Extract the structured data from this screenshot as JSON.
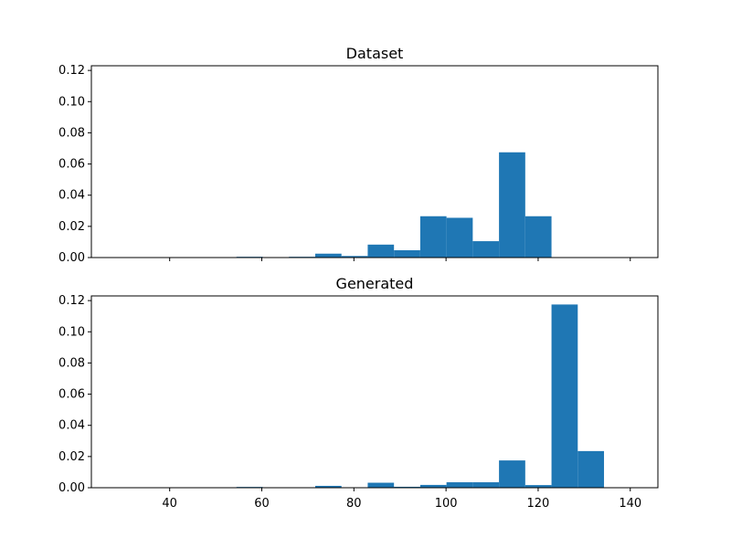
{
  "colors": {
    "bar": "#1f77b4",
    "axis": "#000000",
    "background": "#ffffff"
  },
  "chart_data": [
    {
      "type": "bar",
      "title": "Dataset",
      "xlabel": "",
      "ylabel": "",
      "xlim": [
        23,
        146
      ],
      "ylim": [
        0,
        0.123
      ],
      "grid": false,
      "x_ticks": [
        40,
        60,
        80,
        100,
        120,
        140
      ],
      "x_tick_labels": [],
      "y_ticks": [
        0.0,
        0.02,
        0.04,
        0.06,
        0.08,
        0.1,
        0.12
      ],
      "y_tick_labels": [
        "0.00",
        "0.02",
        "0.04",
        "0.06",
        "0.08",
        "0.10",
        "0.12"
      ],
      "bin_width": 5.7,
      "bins": [
        {
          "x0": 54.5,
          "value": 0.0005
        },
        {
          "x0": 65.9,
          "value": 0.0005
        },
        {
          "x0": 71.6,
          "value": 0.0025
        },
        {
          "x0": 77.3,
          "value": 0.001
        },
        {
          "x0": 83.0,
          "value": 0.0083
        },
        {
          "x0": 88.7,
          "value": 0.0047
        },
        {
          "x0": 94.4,
          "value": 0.0265
        },
        {
          "x0": 100.1,
          "value": 0.0255
        },
        {
          "x0": 105.8,
          "value": 0.0105
        },
        {
          "x0": 111.5,
          "value": 0.0675
        },
        {
          "x0": 117.2,
          "value": 0.0265
        }
      ]
    },
    {
      "type": "bar",
      "title": "Generated",
      "xlabel": "",
      "ylabel": "",
      "xlim": [
        23,
        146
      ],
      "ylim": [
        0,
        0.123
      ],
      "grid": false,
      "x_ticks": [
        40,
        60,
        80,
        100,
        120,
        140
      ],
      "x_tick_labels": [
        "40",
        "60",
        "80",
        "100",
        "120",
        "140"
      ],
      "y_ticks": [
        0.0,
        0.02,
        0.04,
        0.06,
        0.08,
        0.1,
        0.12
      ],
      "y_tick_labels": [
        "0.00",
        "0.02",
        "0.04",
        "0.06",
        "0.08",
        "0.10",
        "0.12"
      ],
      "bin_width": 5.7,
      "bins": [
        {
          "x0": 54.5,
          "value": 0.0005
        },
        {
          "x0": 71.6,
          "value": 0.0012
        },
        {
          "x0": 83.0,
          "value": 0.0032
        },
        {
          "x0": 88.7,
          "value": 0.0006
        },
        {
          "x0": 94.4,
          "value": 0.0018
        },
        {
          "x0": 100.1,
          "value": 0.0035
        },
        {
          "x0": 105.8,
          "value": 0.0035
        },
        {
          "x0": 111.5,
          "value": 0.0175
        },
        {
          "x0": 117.2,
          "value": 0.0017
        },
        {
          "x0": 122.9,
          "value": 0.1175
        },
        {
          "x0": 128.6,
          "value": 0.0235
        }
      ]
    }
  ]
}
